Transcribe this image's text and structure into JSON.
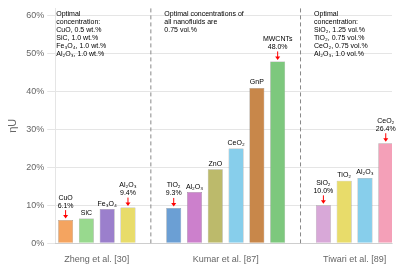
{
  "chart_data": {
    "type": "bar",
    "categories": [
      "Zheng et al. [30]",
      "Kumar et al. [87]",
      "Tiwari et al. [89]"
    ],
    "groups": [
      {
        "names": [
          "CuO",
          "SiC",
          "Fe₃O₄",
          "Al₂O₃"
        ],
        "values": [
          6.1,
          6.5,
          9.0,
          9.4
        ],
        "colors": [
          "#F4A460",
          "#98D98E",
          "#9B7FCC",
          "#E8DC6A"
        ],
        "value_labels": [
          "6.1%",
          null,
          null,
          "9.4%"
        ],
        "annotation": "Optimal\nconcentration:\nCuO, 0.5 wt.%\nSiC, 1.0 wt.%\nFe₃O₄, 1.0 wt.%\nAl₂O₃, 1.0 wt.%"
      },
      {
        "names": [
          "TiO₂",
          "Al₂O₃",
          "ZnO",
          "CeO₂",
          "GnP",
          "MWCNTs"
        ],
        "values": [
          9.3,
          13.5,
          19.5,
          25.0,
          41.0,
          48.0
        ],
        "colors": [
          "#6B9FD4",
          "#CC80CC",
          "#BCBA6B",
          "#87CEEB",
          "#C8874A",
          "#7DC87D"
        ],
        "value_labels": [
          "9.3%",
          null,
          null,
          null,
          null,
          "48.0%"
        ],
        "annotation": "Optimal concentrations of\nall nanofluids are\n0.75 vol.%"
      },
      {
        "names": [
          "SiO₂",
          "TiO₂",
          "Al₂O₃",
          "CeO₂"
        ],
        "values": [
          10.0,
          16.5,
          17.2,
          26.4
        ],
        "colors": [
          "#D8A8D8",
          "#E8DC6A",
          "#87CEEB",
          "#F4A0B8"
        ],
        "value_labels": [
          "10.0%",
          null,
          null,
          "26.4%"
        ],
        "annotation": "Optimal\nconcentration:\nSiO₂, 1.25 vol.%\nTiO₂, 0.75 vol.%\nCeO₂, 0.75 vol.%\nAl₂O₃, 1.0 vol.%"
      }
    ],
    "ylabel": "ηU",
    "ylim": [
      0,
      62
    ],
    "yticks": [
      {
        "value": 0,
        "label": "0%"
      },
      {
        "value": 10,
        "label": "10%"
      },
      {
        "value": 20,
        "label": "20%"
      },
      {
        "value": 30,
        "label": "30%"
      },
      {
        "value": 40,
        "label": "40%"
      },
      {
        "value": 50,
        "label": "50%"
      },
      {
        "value": 60,
        "label": "60%"
      }
    ],
    "grid": true
  }
}
